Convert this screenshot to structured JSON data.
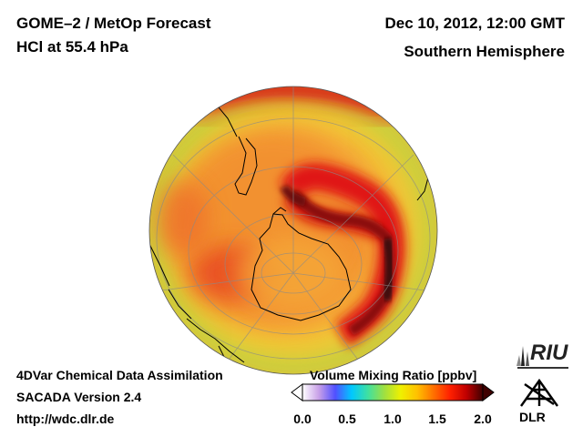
{
  "header": {
    "title_line1": "GOME–2 / MetOp Forecast",
    "title_line2": "HCl at 55.4 hPa",
    "datetime": "Dec 10, 2012, 12:00 GMT",
    "region": "Southern Hemisphere"
  },
  "footer": {
    "line1": "4DVar Chemical Data Assimilation",
    "line2": "SACADA Version 2.4",
    "line3": "http://wdc.dlr.de"
  },
  "colorbar": {
    "title": "Volume Mixing Ratio [ppbv]",
    "ticks": [
      "0.0",
      "0.5",
      "1.0",
      "1.5",
      "2.0"
    ],
    "range": [
      0.0,
      2.0
    ],
    "colors": [
      "#ffffff",
      "#c8a0e8",
      "#5050ff",
      "#00c8ff",
      "#40e0a0",
      "#a0e040",
      "#f0f000",
      "#ffc000",
      "#ff7000",
      "#ff2000",
      "#c00000",
      "#400000"
    ]
  },
  "logos": {
    "riu": "RIU",
    "dlr": "DLR"
  },
  "colors": {
    "background": "#ffffff",
    "text": "#000000",
    "coast": "#000000",
    "grid": "#999999"
  }
}
